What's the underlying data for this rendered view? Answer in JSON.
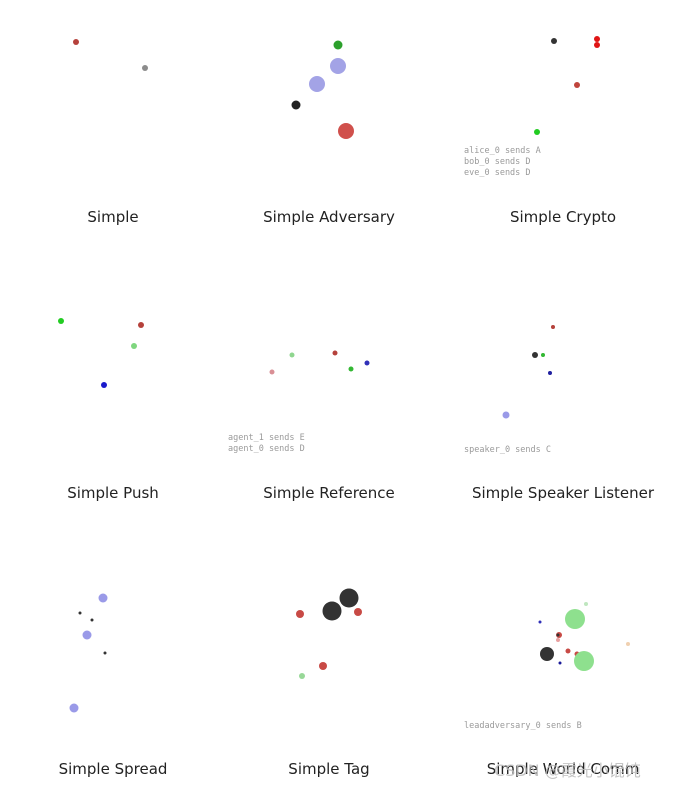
{
  "panels": [
    {
      "title": "Simple",
      "entities": [
        {
          "color": "#b5413b"
        },
        {
          "color": "#8c8c8c"
        }
      ],
      "messages": []
    },
    {
      "title": "Simple Adversary",
      "entities": [
        {
          "color": "#2ca02c"
        },
        {
          "color": "#a3a3e6"
        },
        {
          "color": "#a3a3e6"
        },
        {
          "color": "#222222"
        },
        {
          "color": "#d0504c"
        }
      ],
      "messages": []
    },
    {
      "title": "Simple Crypto",
      "entities": [
        {
          "color": "#333333"
        },
        {
          "color": "#e01515"
        },
        {
          "color": "#e01515"
        },
        {
          "color": "#c0443c"
        },
        {
          "color": "#22cc22"
        }
      ],
      "messages": [
        "alice_0 sends A",
        "bob_0 sends D",
        "eve_0 sends D"
      ]
    },
    {
      "title": "Simple Push",
      "entities": [
        {
          "color": "#22cc22"
        },
        {
          "color": "#b5413b"
        },
        {
          "color": "#7fd67f"
        },
        {
          "color": "#1a1acc"
        }
      ],
      "messages": []
    },
    {
      "title": "Simple Reference",
      "entities": [
        {
          "color": "#8fd68f"
        },
        {
          "color": "#b5413b"
        },
        {
          "color": "#3030b8"
        },
        {
          "color": "#d98f95"
        },
        {
          "color": "#33b833"
        }
      ],
      "messages": [
        "agent_1 sends E",
        "agent_0 sends D"
      ]
    },
    {
      "title": "Simple Speaker Listener",
      "entities": [
        {
          "color": "#b5413b"
        },
        {
          "color": "#333333"
        },
        {
          "color": "#33b833"
        },
        {
          "color": "#2020a0"
        },
        {
          "color": "#9a9ae8"
        }
      ],
      "messages": [
        "speaker_0 sends C"
      ]
    },
    {
      "title": "Simple Spread",
      "entities": [
        {
          "color": "#9a9ae8"
        },
        {
          "color": "#333333"
        },
        {
          "color": "#333333"
        },
        {
          "color": "#9a9ae8"
        },
        {
          "color": "#333333"
        },
        {
          "color": "#9a9ae8"
        }
      ],
      "messages": []
    },
    {
      "title": "Simple Tag",
      "entities": [
        {
          "color": "#333333"
        },
        {
          "color": "#333333"
        },
        {
          "color": "#c84a45"
        },
        {
          "color": "#c84a45"
        },
        {
          "color": "#c84a45"
        },
        {
          "color": "#98d898"
        }
      ],
      "messages": []
    },
    {
      "title": "Simple World Comm",
      "entities": [
        {
          "color": "#bfe7bf"
        },
        {
          "color": "#8ee08e"
        },
        {
          "color": "#3030b8"
        },
        {
          "color": "#c84a45"
        },
        {
          "color": "#333333"
        },
        {
          "color": "#e8a0a0"
        },
        {
          "color": "#f0d0b0"
        },
        {
          "color": "#c84a45"
        },
        {
          "color": "#333333"
        },
        {
          "color": "#c84a45"
        },
        {
          "color": "#8ee08e"
        },
        {
          "color": "#1a1a99"
        }
      ],
      "messages": [
        "leadadversary_0 sends B"
      ]
    }
  ],
  "watermark": "CSDN @霞光小馄饨"
}
